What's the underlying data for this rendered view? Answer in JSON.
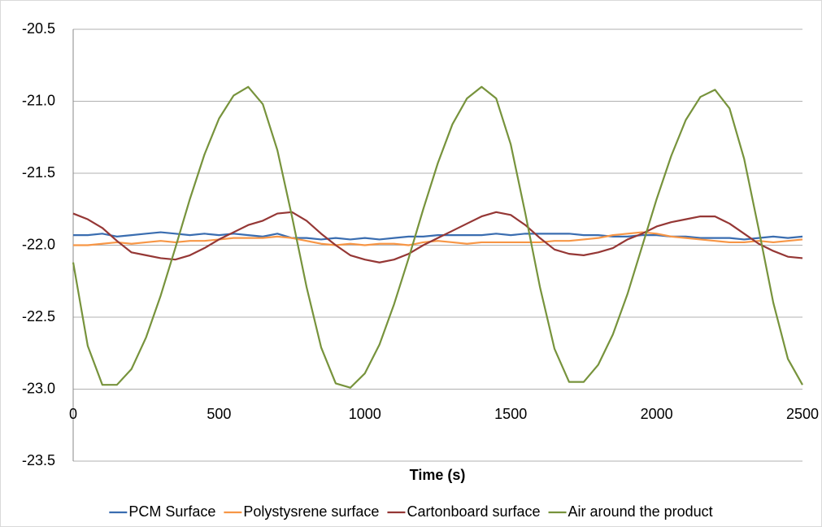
{
  "chart_data": {
    "type": "line",
    "x_label": "Time (s)",
    "x": [
      0,
      50,
      100,
      150,
      200,
      250,
      300,
      350,
      400,
      450,
      500,
      550,
      600,
      650,
      700,
      750,
      800,
      850,
      900,
      950,
      1000,
      1050,
      1100,
      1150,
      1200,
      1250,
      1300,
      1350,
      1400,
      1450,
      1500,
      1550,
      1600,
      1650,
      1700,
      1750,
      1800,
      1850,
      1900,
      1950,
      2000,
      2050,
      2100,
      2150,
      2200,
      2250,
      2300,
      2350,
      2400,
      2450,
      2500
    ],
    "xlim": [
      0,
      2500
    ],
    "xticks": [
      0,
      500,
      1000,
      1500,
      2000,
      2500
    ],
    "ylim": [
      -23.5,
      -20.5
    ],
    "yticks": [
      -20.5,
      {
        "value": -21,
        "label": "-21.0"
      },
      -21.5,
      {
        "value": -22,
        "label": "-22.0"
      },
      -22.5,
      {
        "value": -23,
        "label": "-23.0"
      },
      -23.5
    ],
    "grid": true,
    "legend": "bottom",
    "series": [
      {
        "name": "PCM Surface",
        "color": "#3a6db0",
        "values": [
          -21.93,
          -21.93,
          -21.92,
          -21.94,
          -21.93,
          -21.92,
          -21.91,
          -21.92,
          -21.93,
          -21.92,
          -21.93,
          -21.92,
          -21.93,
          -21.94,
          -21.92,
          -21.95,
          -21.95,
          -21.96,
          -21.95,
          -21.96,
          -21.95,
          -21.96,
          -21.95,
          -21.94,
          -21.94,
          -21.93,
          -21.93,
          -21.93,
          -21.93,
          -21.92,
          -21.93,
          -21.92,
          -21.92,
          -21.92,
          -21.92,
          -21.93,
          -21.93,
          -21.94,
          -21.94,
          -21.93,
          -21.93,
          -21.94,
          -21.94,
          -21.95,
          -21.95,
          -21.95,
          -21.96,
          -21.95,
          -21.94,
          -21.95,
          -21.94
        ]
      },
      {
        "name": "Polystysrene surface",
        "color": "#f79646",
        "values": [
          -22.0,
          -22.0,
          -21.99,
          -21.98,
          -21.99,
          -21.98,
          -21.97,
          -21.98,
          -21.97,
          -21.97,
          -21.96,
          -21.95,
          -21.95,
          -21.95,
          -21.94,
          -21.95,
          -21.97,
          -21.99,
          -22.0,
          -21.99,
          -22.0,
          -21.99,
          -21.99,
          -22.0,
          -21.98,
          -21.97,
          -21.98,
          -21.99,
          -21.98,
          -21.98,
          -21.98,
          -21.98,
          -21.98,
          -21.97,
          -21.97,
          -21.96,
          -21.95,
          -21.93,
          -21.92,
          -21.91,
          -21.92,
          -21.94,
          -21.95,
          -21.96,
          -21.97,
          -21.98,
          -21.98,
          -21.97,
          -21.98,
          -21.97,
          -21.96
        ]
      },
      {
        "name": "Cartonboard surface",
        "color": "#953735",
        "values": [
          -21.78,
          -21.82,
          -21.88,
          -21.97,
          -22.05,
          -22.07,
          -22.09,
          -22.1,
          -22.07,
          -22.02,
          -21.96,
          -21.91,
          -21.86,
          -21.83,
          -21.78,
          -21.77,
          -21.83,
          -21.92,
          -22.0,
          -22.07,
          -22.1,
          -22.12,
          -22.1,
          -22.06,
          -22.0,
          -21.95,
          -21.9,
          -21.85,
          -21.8,
          -21.77,
          -21.79,
          -21.86,
          -21.95,
          -22.03,
          -22.06,
          -22.07,
          -22.05,
          -22.02,
          -21.96,
          -21.92,
          -21.87,
          -21.84,
          -21.82,
          -21.8,
          -21.8,
          -21.85,
          -21.92,
          -21.99,
          -22.04,
          -22.08,
          -22.09
        ]
      },
      {
        "name": "Air around the product",
        "color": "#77933c",
        "values": [
          -22.12,
          -22.7,
          -22.97,
          -22.97,
          -22.86,
          -22.64,
          -22.35,
          -22.02,
          -21.68,
          -21.37,
          -21.12,
          -20.96,
          -20.9,
          -21.02,
          -21.34,
          -21.8,
          -22.29,
          -22.71,
          -22.96,
          -22.99,
          -22.89,
          -22.69,
          -22.41,
          -22.09,
          -21.75,
          -21.43,
          -21.16,
          -20.98,
          -20.9,
          -20.98,
          -21.3,
          -21.78,
          -22.29,
          -22.72,
          -22.95,
          -22.95,
          -22.83,
          -22.62,
          -22.34,
          -22.01,
          -21.68,
          -21.38,
          -21.13,
          -20.97,
          -20.92,
          -21.05,
          -21.4,
          -21.89,
          -22.4,
          -22.79,
          -22.97
        ]
      }
    ]
  }
}
